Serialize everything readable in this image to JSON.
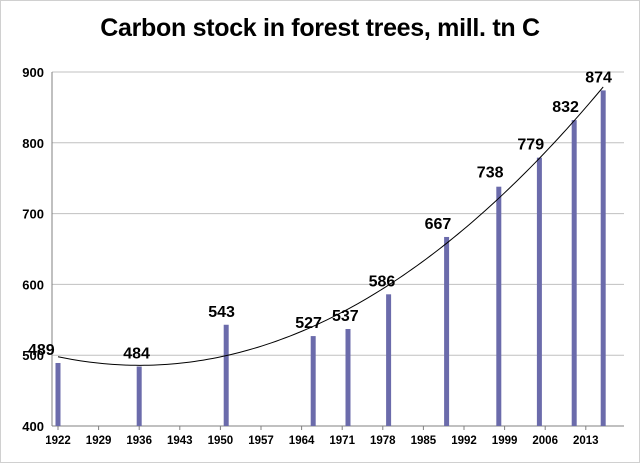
{
  "chart_data": {
    "type": "bar",
    "title": "Carbon stock in forest trees, mill. tn C",
    "xlabel": "",
    "ylabel": "",
    "ylim": [
      400,
      900
    ],
    "yticks": [
      "400",
      "500",
      "600",
      "700",
      "800",
      "900"
    ],
    "xlim": [
      1922,
      2018
    ],
    "xticks": [
      "1922",
      "1929",
      "1936",
      "1943",
      "1950",
      "1957",
      "1964",
      "1971",
      "1978",
      "1985",
      "1992",
      "1999",
      "2006",
      "2013"
    ],
    "x": [
      1922,
      1936,
      1951,
      1966,
      1972,
      1979,
      1989,
      1998,
      2005,
      2011,
      2016
    ],
    "values": [
      489,
      484,
      543,
      527,
      537,
      586,
      667,
      738,
      779,
      832,
      874
    ],
    "data_labels": [
      "489",
      "484",
      "543",
      "527",
      "537",
      "586",
      "667",
      "738",
      "779",
      "832",
      "874"
    ],
    "trendline": "polynomial",
    "grid": "horizontal",
    "legend": "none",
    "colors": {
      "bar": "#6b6bab",
      "grid": "#c0c0c0",
      "trend": "#000000"
    }
  }
}
